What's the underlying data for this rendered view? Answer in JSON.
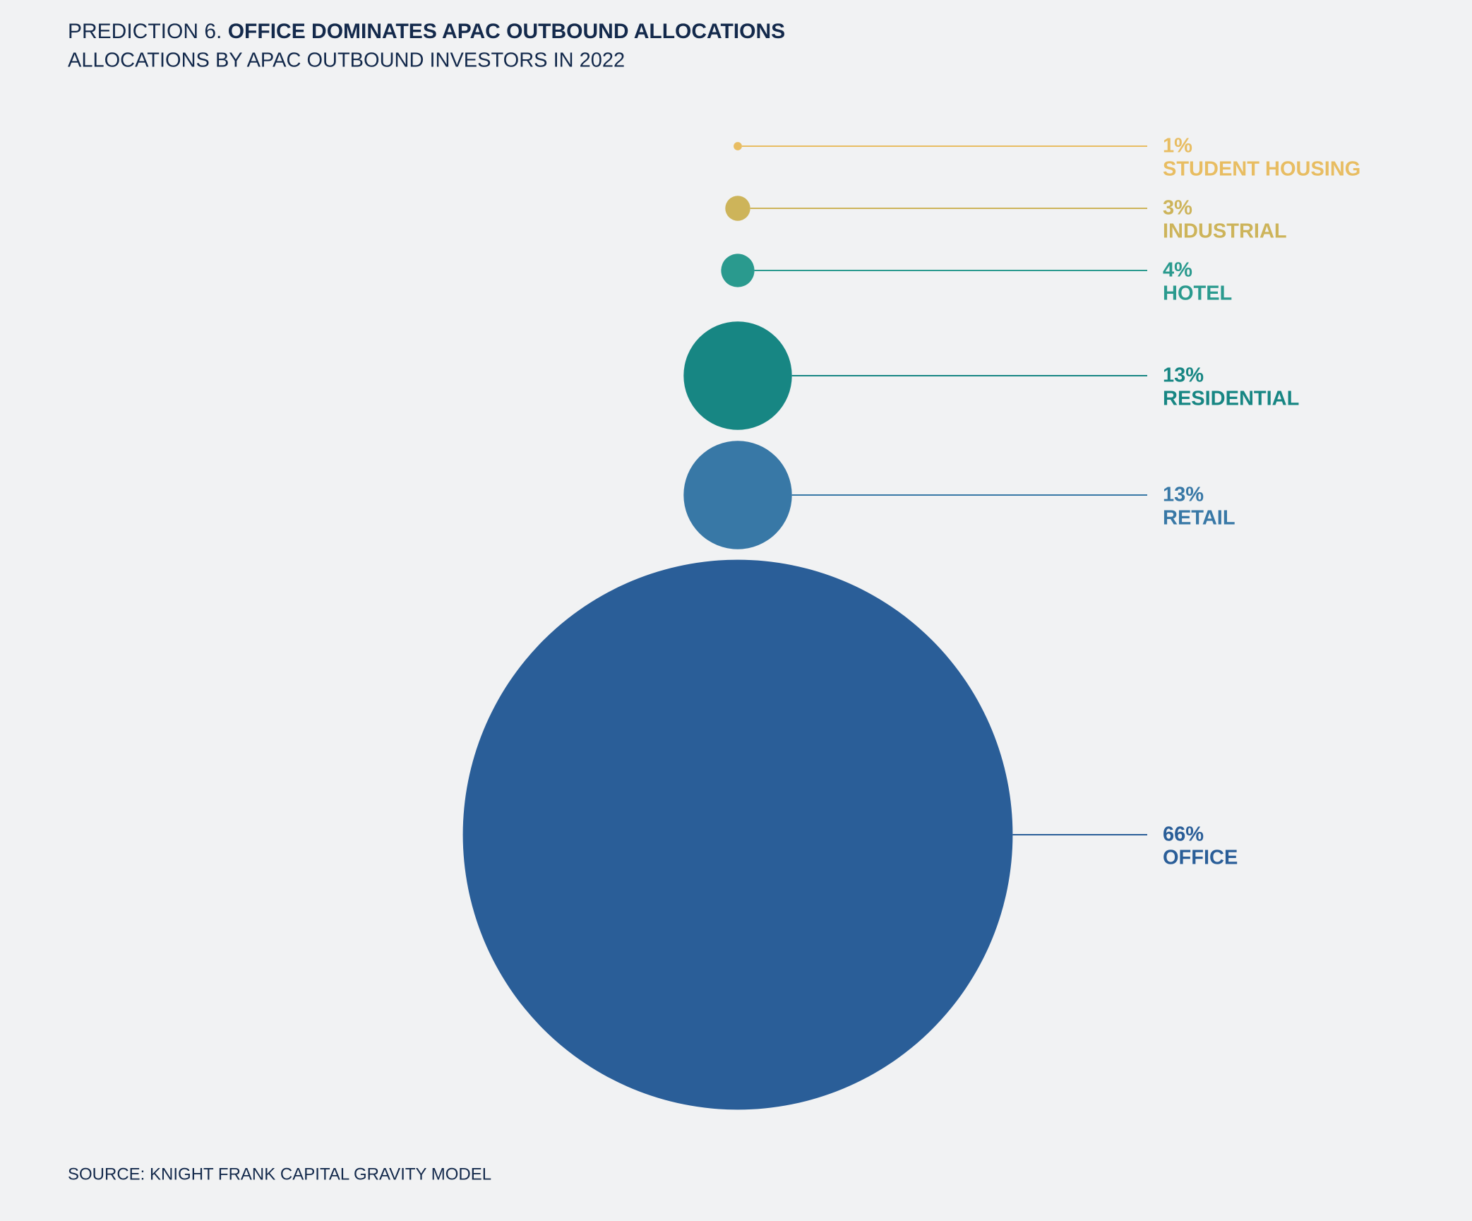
{
  "chart_data": {
    "type": "bubble",
    "title_prefix": "PREDICTION 6.",
    "title": "OFFICE DOMINATES APAC OUTBOUND ALLOCATIONS",
    "subtitle": "ALLOCATIONS BY APAC OUTBOUND INVESTORS IN 2022",
    "source": "SOURCE: KNIGHT FRANK CAPITAL GRAVITY MODEL",
    "categories": [
      "STUDENT HOUSING",
      "INDUSTRIAL",
      "HOTEL",
      "RESIDENTIAL",
      "RETAIL",
      "OFFICE"
    ],
    "values": [
      1,
      3,
      4,
      13,
      13,
      66
    ],
    "value_labels": [
      "1%",
      "3%",
      "4%",
      "13%",
      "13%",
      "66%"
    ],
    "colors": [
      "#e8bd62",
      "#cdb45a",
      "#2a9a8e",
      "#178683",
      "#3878a6",
      "#2a5e98"
    ]
  }
}
